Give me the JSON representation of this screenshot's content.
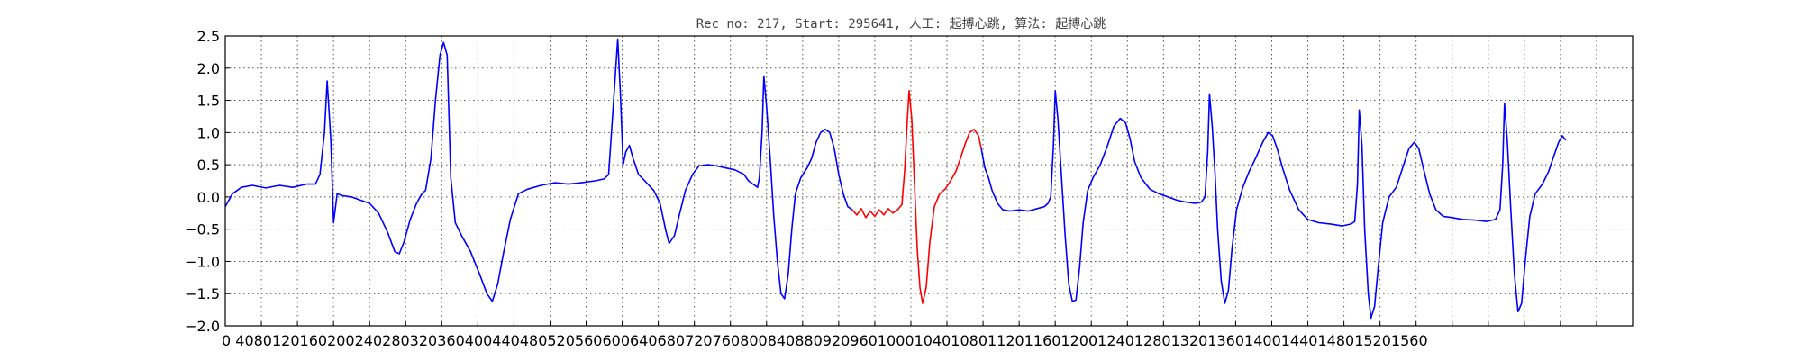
{
  "chart_data": {
    "type": "line",
    "title": "Rec_no: 217, Start: 295641, 人工: 起搏心跳, 算法: 起搏心跳",
    "xlabel": "",
    "ylabel": "",
    "xlim": [
      0,
      1560
    ],
    "ylim": [
      -2.0,
      2.5
    ],
    "grid": true,
    "yticks": [
      2.5,
      2.0,
      1.5,
      1.0,
      0.5,
      0.0,
      -0.5,
      -1.0,
      -1.5,
      -2.0
    ],
    "ytick_labels": [
      "2.5",
      "2.0",
      "1.5",
      "1.0",
      "0.5",
      "0.0",
      "−0.5",
      "−1.0",
      "−1.5",
      "−2.0"
    ],
    "xtick_step": 40,
    "xtick_labels_text": "0 4080120160200240280320360400440480520560600640680720760800840880920960100010401080112011601200124012801320136014001440148015201560",
    "series": [
      {
        "color": "#0000ff",
        "points": [
          [
            0,
            -0.15
          ],
          [
            8,
            0.05
          ],
          [
            18,
            0.15
          ],
          [
            30,
            0.18
          ],
          [
            45,
            0.14
          ],
          [
            60,
            0.18
          ],
          [
            75,
            0.15
          ],
          [
            90,
            0.2
          ],
          [
            100,
            0.2
          ],
          [
            105,
            0.35
          ],
          [
            110,
            1.0
          ],
          [
            113,
            1.8
          ],
          [
            117,
            0.9
          ],
          [
            120,
            -0.4
          ],
          [
            124,
            0.05
          ],
          [
            130,
            0.02
          ],
          [
            140,
            0.0
          ],
          [
            150,
            -0.05
          ],
          [
            160,
            -0.1
          ],
          [
            170,
            -0.25
          ],
          [
            180,
            -0.55
          ],
          [
            188,
            -0.85
          ],
          [
            193,
            -0.88
          ],
          [
            198,
            -0.7
          ],
          [
            205,
            -0.35
          ],
          [
            212,
            -0.1
          ],
          [
            218,
            0.05
          ],
          [
            222,
            0.1
          ],
          [
            228,
            0.6
          ],
          [
            233,
            1.5
          ],
          [
            238,
            2.2
          ],
          [
            242,
            2.4
          ],
          [
            246,
            2.2
          ],
          [
            250,
            0.3
          ],
          [
            255,
            -0.4
          ],
          [
            262,
            -0.6
          ],
          [
            272,
            -0.85
          ],
          [
            282,
            -1.2
          ],
          [
            290,
            -1.5
          ],
          [
            296,
            -1.62
          ],
          [
            302,
            -1.35
          ],
          [
            308,
            -0.9
          ],
          [
            316,
            -0.35
          ],
          [
            325,
            0.05
          ],
          [
            335,
            0.12
          ],
          [
            350,
            0.18
          ],
          [
            365,
            0.22
          ],
          [
            380,
            0.2
          ],
          [
            395,
            0.22
          ],
          [
            410,
            0.25
          ],
          [
            420,
            0.28
          ],
          [
            425,
            0.35
          ],
          [
            430,
            1.4
          ],
          [
            435,
            2.45
          ],
          [
            438,
            1.6
          ],
          [
            441,
            0.5
          ],
          [
            444,
            0.7
          ],
          [
            448,
            0.8
          ],
          [
            452,
            0.6
          ],
          [
            458,
            0.35
          ],
          [
            465,
            0.25
          ],
          [
            475,
            0.1
          ],
          [
            482,
            -0.1
          ],
          [
            488,
            -0.5
          ],
          [
            492,
            -0.72
          ],
          [
            498,
            -0.6
          ],
          [
            503,
            -0.3
          ],
          [
            510,
            0.1
          ],
          [
            518,
            0.35
          ],
          [
            525,
            0.48
          ],
          [
            535,
            0.5
          ],
          [
            545,
            0.48
          ],
          [
            555,
            0.45
          ],
          [
            565,
            0.42
          ],
          [
            575,
            0.35
          ],
          [
            580,
            0.25
          ],
          [
            585,
            0.2
          ],
          [
            590,
            0.15
          ],
          [
            592,
            0.3
          ],
          [
            595,
            1.0
          ],
          [
            597,
            1.88
          ],
          [
            600,
            1.4
          ],
          [
            604,
            0.6
          ],
          [
            608,
            -0.3
          ],
          [
            612,
            -1.0
          ],
          [
            616,
            -1.5
          ],
          [
            620,
            -1.58
          ],
          [
            624,
            -1.2
          ],
          [
            628,
            -0.5
          ],
          [
            632,
            0.05
          ],
          [
            638,
            0.3
          ],
          [
            645,
            0.45
          ],
          [
            650,
            0.6
          ],
          [
            655,
            0.85
          ],
          [
            660,
            1.0
          ],
          [
            665,
            1.05
          ],
          [
            670,
            1.0
          ],
          [
            675,
            0.75
          ],
          [
            680,
            0.35
          ],
          [
            685,
            0.05
          ],
          [
            690,
            -0.15
          ],
          [
            695,
            -0.2
          ]
        ]
      },
      {
        "color": "#ff0000",
        "points": [
          [
            695,
            -0.2
          ],
          [
            700,
            -0.28
          ],
          [
            705,
            -0.18
          ],
          [
            710,
            -0.32
          ],
          [
            715,
            -0.22
          ],
          [
            720,
            -0.3
          ],
          [
            725,
            -0.2
          ],
          [
            730,
            -0.28
          ],
          [
            735,
            -0.18
          ],
          [
            740,
            -0.25
          ],
          [
            745,
            -0.2
          ],
          [
            750,
            -0.12
          ],
          [
            753,
            0.4
          ],
          [
            756,
            1.2
          ],
          [
            758,
            1.65
          ],
          [
            761,
            1.2
          ],
          [
            764,
            0.2
          ],
          [
            767,
            -0.8
          ],
          [
            770,
            -1.4
          ],
          [
            773,
            -1.65
          ],
          [
            777,
            -1.4
          ],
          [
            781,
            -0.7
          ],
          [
            786,
            -0.15
          ],
          [
            792,
            0.05
          ],
          [
            798,
            0.12
          ],
          [
            804,
            0.25
          ],
          [
            810,
            0.4
          ],
          [
            815,
            0.6
          ],
          [
            820,
            0.82
          ],
          [
            825,
            1.0
          ],
          [
            830,
            1.05
          ],
          [
            835,
            0.95
          ],
          [
            838,
            0.75
          ]
        ]
      },
      {
        "color": "#0000ff",
        "points": [
          [
            838,
            0.75
          ],
          [
            842,
            0.45
          ],
          [
            846,
            0.3
          ],
          [
            850,
            0.1
          ],
          [
            856,
            -0.1
          ],
          [
            862,
            -0.2
          ],
          [
            870,
            -0.22
          ],
          [
            880,
            -0.2
          ],
          [
            890,
            -0.22
          ],
          [
            900,
            -0.18
          ],
          [
            908,
            -0.15
          ],
          [
            912,
            -0.1
          ],
          [
            915,
            0.0
          ],
          [
            918,
            0.8
          ],
          [
            920,
            1.65
          ],
          [
            923,
            1.2
          ],
          [
            927,
            0.3
          ],
          [
            931,
            -0.6
          ],
          [
            935,
            -1.35
          ],
          [
            939,
            -1.62
          ],
          [
            943,
            -1.6
          ],
          [
            947,
            -1.1
          ],
          [
            951,
            -0.4
          ],
          [
            956,
            0.1
          ],
          [
            962,
            0.3
          ],
          [
            970,
            0.5
          ],
          [
            978,
            0.8
          ],
          [
            985,
            1.1
          ],
          [
            992,
            1.22
          ],
          [
            998,
            1.15
          ],
          [
            1003,
            0.9
          ],
          [
            1008,
            0.55
          ],
          [
            1015,
            0.3
          ],
          [
            1025,
            0.12
          ],
          [
            1035,
            0.05
          ],
          [
            1045,
            0.0
          ],
          [
            1055,
            -0.05
          ],
          [
            1065,
            -0.08
          ],
          [
            1075,
            -0.1
          ],
          [
            1082,
            -0.08
          ],
          [
            1086,
            0.0
          ],
          [
            1089,
            0.7
          ],
          [
            1091,
            1.6
          ],
          [
            1094,
            1.1
          ],
          [
            1097,
            0.4
          ],
          [
            1100,
            -0.5
          ],
          [
            1104,
            -1.3
          ],
          [
            1108,
            -1.65
          ],
          [
            1112,
            -1.45
          ],
          [
            1116,
            -0.8
          ],
          [
            1121,
            -0.2
          ],
          [
            1128,
            0.15
          ],
          [
            1135,
            0.4
          ],
          [
            1142,
            0.6
          ],
          [
            1150,
            0.85
          ],
          [
            1156,
            1.0
          ],
          [
            1161,
            0.95
          ],
          [
            1166,
            0.75
          ],
          [
            1172,
            0.45
          ],
          [
            1180,
            0.1
          ],
          [
            1190,
            -0.2
          ],
          [
            1200,
            -0.35
          ],
          [
            1212,
            -0.4
          ],
          [
            1225,
            -0.42
          ],
          [
            1238,
            -0.45
          ],
          [
            1248,
            -0.42
          ],
          [
            1252,
            -0.38
          ],
          [
            1255,
            0.2
          ],
          [
            1257,
            1.35
          ],
          [
            1260,
            0.8
          ],
          [
            1263,
            -0.5
          ],
          [
            1267,
            -1.5
          ],
          [
            1270,
            -1.88
          ],
          [
            1274,
            -1.7
          ],
          [
            1278,
            -1.1
          ],
          [
            1283,
            -0.4
          ],
          [
            1290,
            0.0
          ],
          [
            1298,
            0.15
          ],
          [
            1305,
            0.45
          ],
          [
            1312,
            0.75
          ],
          [
            1318,
            0.85
          ],
          [
            1323,
            0.75
          ],
          [
            1328,
            0.45
          ],
          [
            1335,
            0.05
          ],
          [
            1342,
            -0.2
          ],
          [
            1350,
            -0.3
          ],
          [
            1360,
            -0.32
          ],
          [
            1372,
            -0.35
          ],
          [
            1385,
            -0.36
          ],
          [
            1398,
            -0.38
          ],
          [
            1408,
            -0.35
          ],
          [
            1413,
            -0.2
          ],
          [
            1416,
            0.5
          ],
          [
            1418,
            1.45
          ],
          [
            1421,
            0.9
          ],
          [
            1425,
            -0.2
          ],
          [
            1429,
            -1.2
          ],
          [
            1433,
            -1.78
          ],
          [
            1437,
            -1.65
          ],
          [
            1441,
            -1.0
          ],
          [
            1446,
            -0.3
          ],
          [
            1452,
            0.05
          ],
          [
            1460,
            0.2
          ],
          [
            1467,
            0.4
          ],
          [
            1473,
            0.65
          ],
          [
            1478,
            0.85
          ],
          [
            1482,
            0.95
          ],
          [
            1486,
            0.88
          ]
        ]
      }
    ]
  }
}
